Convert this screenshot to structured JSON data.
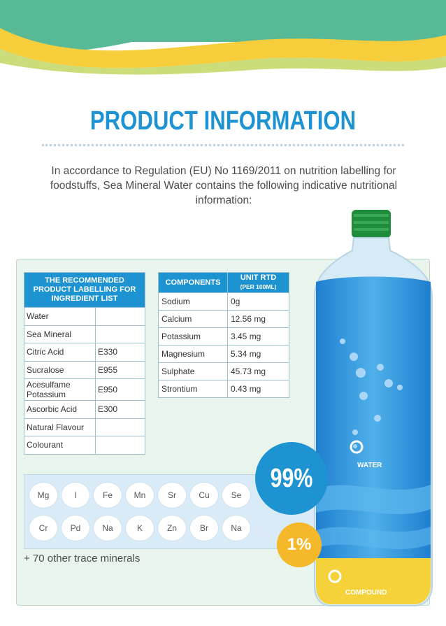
{
  "title": "PRODUCT INFORMATION",
  "intro": "In accordance to Regulation (EU) No 1169/2011 on nutrition labelling for foodstuffs,  Sea Mineral Water contains the following indicative nutritional information:",
  "ingredients": {
    "header": "THE RECOMMENDED PRODUCT LABELLING FOR INGREDIENT LIST",
    "rows": [
      {
        "name": "Water",
        "code": ""
      },
      {
        "name": "Sea Mineral",
        "code": ""
      },
      {
        "name": "Citric Acid",
        "code": "E330"
      },
      {
        "name": "Sucralose",
        "code": "E955"
      },
      {
        "name": "Acesulfame Potassium",
        "code": "E950"
      },
      {
        "name": "Ascorbic Acid",
        "code": "E300"
      },
      {
        "name": "Natural Flavour",
        "code": ""
      },
      {
        "name": "Colourant",
        "code": ""
      }
    ]
  },
  "components": {
    "header_name": "COMPONENTS",
    "header_unit": "UNIT RTD",
    "header_unit_sub": "(PER 100ML)",
    "rows": [
      {
        "name": "Sodium",
        "value": "0g"
      },
      {
        "name": "Calcium",
        "value": "12.56 mg"
      },
      {
        "name": "Potassium",
        "value": "3.45 mg"
      },
      {
        "name": "Magnesium",
        "value": " 5.34 mg"
      },
      {
        "name": "Sulphate",
        "value": "45.73 mg"
      },
      {
        "name": "Strontium",
        "value": "0.43 mg"
      }
    ]
  },
  "minerals_row1": [
    "Mg",
    "I",
    "Fe",
    "Mn",
    "Sr",
    "Cu",
    "Se"
  ],
  "minerals_row2": [
    "Cr",
    "Pd",
    "Na",
    "K",
    "Zn",
    "Br",
    "Na"
  ],
  "trace_note": "+ 70 other trace minerals",
  "water_percent": "99%",
  "water_label": "WATER",
  "compound_percent": "1%",
  "compound_label": "COMPOUND",
  "colors": {
    "blue": "#1e93d2",
    "green": "#5dbb9a",
    "yellow": "#f5b82a",
    "lime": "#cddc78"
  }
}
